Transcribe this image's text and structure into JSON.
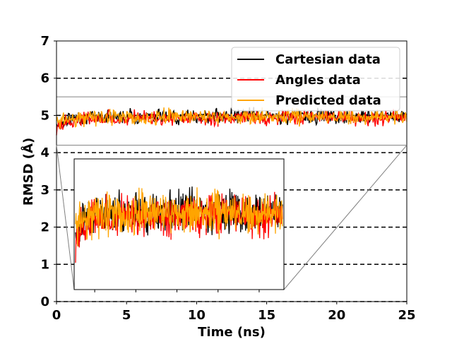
{
  "chart_data": {
    "type": "line",
    "xlabel": "Time (ns)",
    "ylabel": "RMSD (Å)",
    "xlim": [
      0,
      25
    ],
    "ylim": [
      0,
      7
    ],
    "xticks": [
      "0",
      "5",
      "10",
      "15",
      "20",
      "25"
    ],
    "yticks": [
      "0",
      "1",
      "2",
      "3",
      "4",
      "5",
      "6",
      "7"
    ],
    "reference_lines_y": [
      0,
      1,
      2,
      3,
      4,
      5,
      6
    ],
    "zoom_band_y": [
      4.2,
      5.5
    ],
    "legend_position": "top-right",
    "series": [
      {
        "name": "Cartesian data",
        "color": "#000000",
        "mean": 4.98,
        "start": 4.7,
        "amplitude": 0.13
      },
      {
        "name": "Angles data",
        "color": "#ff0000",
        "mean": 4.93,
        "start": 4.6,
        "amplitude": 0.14
      },
      {
        "name": " Predicted data",
        "color": "#ffa500",
        "mean": 4.96,
        "start": 4.8,
        "amplitude": 0.14
      }
    ]
  }
}
